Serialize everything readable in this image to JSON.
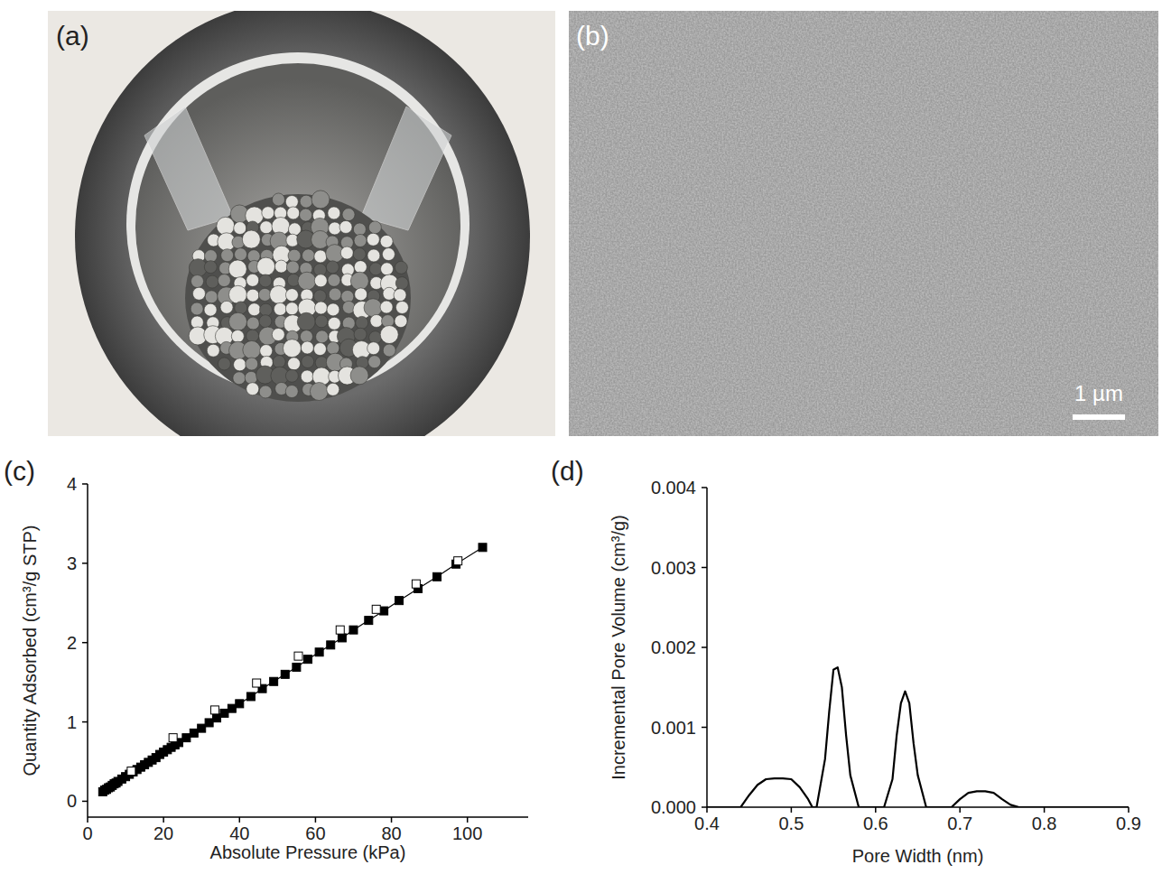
{
  "panel_labels": [
    "(a)",
    "(b)",
    "(c)",
    "(d)"
  ],
  "scale_bar": "1 µm",
  "chart_data": [
    {
      "type": "scatter",
      "x_label": "Absolute Pressure (kPa)",
      "y_label": "Quantity Adsorbed (cm³/g STP)",
      "xlim": [
        0,
        116
      ],
      "ylim": [
        -0.2,
        4
      ],
      "xticks": [
        0,
        20,
        40,
        60,
        80,
        100
      ],
      "yticks": [
        0,
        1,
        2,
        3,
        4
      ],
      "series": [
        {
          "color": "#000000",
          "marker": "square",
          "line_style": "solid",
          "x": [
            4,
            4.5,
            5,
            5.5,
            6,
            6.5,
            7,
            7.5,
            8,
            9,
            10,
            11,
            12,
            13,
            14,
            15,
            16,
            17,
            18,
            19,
            20,
            21,
            22,
            23,
            24,
            26,
            28,
            30,
            32,
            34,
            36,
            38,
            40,
            43,
            46,
            49,
            52,
            55,
            58,
            61,
            64,
            67,
            70,
            74,
            78,
            82,
            87,
            92,
            97,
            104
          ],
          "values": [
            0.12,
            0.14,
            0.15,
            0.17,
            0.18,
            0.2,
            0.22,
            0.23,
            0.25,
            0.28,
            0.31,
            0.34,
            0.37,
            0.4,
            0.43,
            0.46,
            0.49,
            0.52,
            0.55,
            0.59,
            0.62,
            0.65,
            0.68,
            0.71,
            0.74,
            0.8,
            0.86,
            0.92,
            0.99,
            1.05,
            1.11,
            1.17,
            1.23,
            1.32,
            1.42,
            1.51,
            1.6,
            1.69,
            1.79,
            1.88,
            1.97,
            2.06,
            2.16,
            2.28,
            2.4,
            2.53,
            2.68,
            2.83,
            2.99,
            3.2
          ]
        },
        {
          "color": "#000000",
          "marker": "open-square",
          "line_style": "none",
          "x": [
            11.5,
            22.5,
            33.5,
            44.5,
            55.5,
            66.5,
            76,
            86.5,
            97.5
          ],
          "values": [
            0.38,
            0.8,
            1.15,
            1.49,
            1.83,
            2.16,
            2.42,
            2.74,
            3.03
          ]
        }
      ]
    },
    {
      "type": "line",
      "x_label": "Pore Width (nm)",
      "y_label": "Incremental Pore Volume (cm³/g)",
      "xlim": [
        0.4,
        0.9
      ],
      "ylim": [
        0,
        0.004
      ],
      "xticks": [
        0.4,
        0.5,
        0.6,
        0.7,
        0.8,
        0.9
      ],
      "yticks": [
        {
          "value": 0,
          "label": "0.000"
        },
        {
          "value": 0.001,
          "label": "0.001"
        },
        {
          "value": 0.002,
          "label": "0.002"
        },
        {
          "value": 0.003,
          "label": "0.003"
        },
        {
          "value": 0.004,
          "label": "0.004"
        }
      ],
      "x": [
        0.4,
        0.44,
        0.45,
        0.46,
        0.47,
        0.48,
        0.49,
        0.5,
        0.51,
        0.52,
        0.525,
        0.53,
        0.54,
        0.545,
        0.55,
        0.555,
        0.56,
        0.565,
        0.57,
        0.58,
        0.59,
        0.6,
        0.61,
        0.62,
        0.625,
        0.63,
        0.635,
        0.64,
        0.645,
        0.65,
        0.66,
        0.67,
        0.68,
        0.69,
        0.7,
        0.71,
        0.72,
        0.73,
        0.74,
        0.75,
        0.76,
        0.77,
        0.78,
        0.9
      ],
      "series": [
        {
          "color": "#000000",
          "line_style": "solid",
          "values": [
            0,
            0,
            0.00015,
            0.00028,
            0.00035,
            0.00036,
            0.00036,
            0.00035,
            0.00025,
            0.0001,
            0,
            0,
            0.0006,
            0.0012,
            0.00172,
            0.00175,
            0.0015,
            0.0009,
            0.0004,
            0,
            0,
            0,
            0,
            0.00035,
            0.0009,
            0.0013,
            0.00145,
            0.0013,
            0.0008,
            0.0004,
            0,
            0,
            0,
            0,
            0.0001,
            0.00018,
            0.0002,
            0.0002,
            0.00018,
            0.0001,
            3e-05,
            0,
            0,
            0
          ]
        }
      ]
    }
  ]
}
